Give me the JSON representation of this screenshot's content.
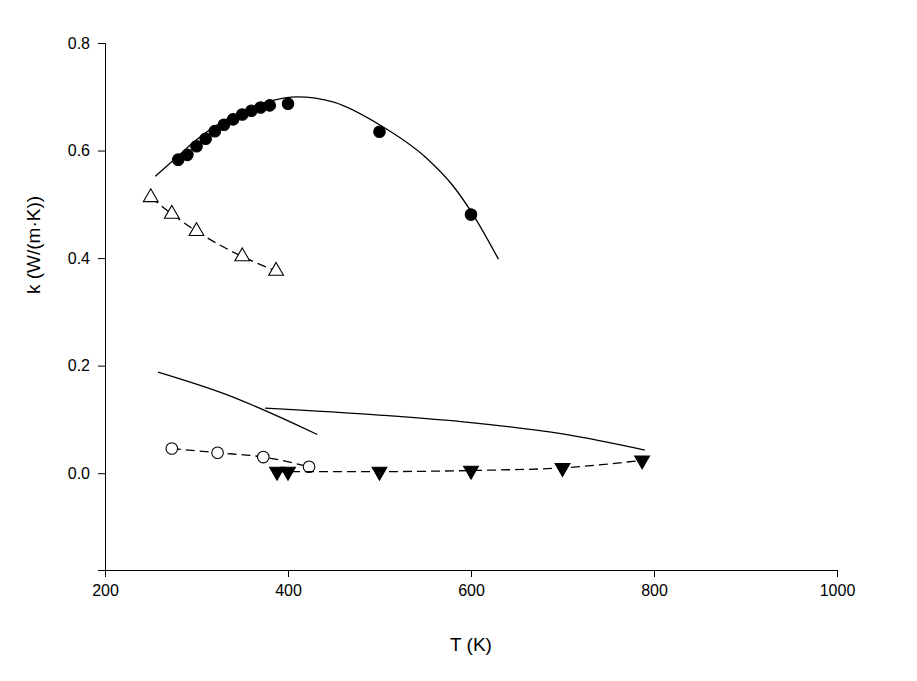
{
  "chart_data": {
    "type": "scatter",
    "x_label": "T (K)",
    "y_label": "k (W/(m·K))",
    "xlim": [
      200,
      1000
    ],
    "xticks": [
      200,
      400,
      600,
      800,
      1000
    ],
    "ylim": [
      -0.18,
      0.8
    ],
    "yticks": [
      {
        "value": 0,
        "label": "0.0"
      },
      0.2,
      0.4,
      0.6,
      0.8
    ],
    "series": [
      {
        "type": "scatter",
        "marker": "circle",
        "line_style": "none",
        "color": "#000000",
        "x": [
          280,
          290,
          300,
          310,
          320,
          330,
          340,
          350,
          360,
          370,
          380,
          400,
          500,
          600
        ],
        "values": [
          0.583,
          0.592,
          0.608,
          0.622,
          0.636,
          0.648,
          0.658,
          0.667,
          0.674,
          0.68,
          0.684,
          0.687,
          0.635,
          0.481
        ]
      },
      {
        "type": "line",
        "marker": "none",
        "line_style": "solid",
        "color": "#000000",
        "x": [
          255,
          280,
          300,
          320,
          350,
          380,
          410,
          450,
          500,
          550,
          580,
          600,
          630
        ],
        "values": [
          0.552,
          0.59,
          0.62,
          0.645,
          0.673,
          0.692,
          0.7,
          0.69,
          0.648,
          0.588,
          0.535,
          0.487,
          0.398
        ]
      },
      {
        "type": "line",
        "marker": "triangle-open",
        "line_style": "dashed",
        "color": "#000000",
        "x": [
          250,
          273,
          300,
          350,
          387
        ],
        "values": [
          0.513,
          0.482,
          0.45,
          0.403,
          0.376
        ]
      },
      {
        "type": "line",
        "marker": "none",
        "line_style": "solid",
        "color": "#000000",
        "x": [
          258,
          330,
          432
        ],
        "values": [
          0.188,
          0.148,
          0.072
        ]
      },
      {
        "type": "line",
        "marker": "none",
        "line_style": "solid",
        "color": "#000000",
        "x": [
          375,
          500,
          600,
          700,
          790
        ],
        "values": [
          0.121,
          0.108,
          0.094,
          0.073,
          0.043
        ]
      },
      {
        "type": "line",
        "marker": "circle-open",
        "line_style": "dashed",
        "color": "#000000",
        "x": [
          273,
          323,
          373,
          423
        ],
        "values": [
          0.046,
          0.038,
          0.03,
          0.012
        ]
      },
      {
        "type": "line",
        "marker": "triangle-down",
        "line_style": "dashed",
        "color": "#000000",
        "x": [
          388,
          400,
          500,
          600,
          700,
          787
        ],
        "values": [
          0.003,
          0.003,
          0.003,
          0.005,
          0.01,
          0.024
        ]
      }
    ]
  }
}
